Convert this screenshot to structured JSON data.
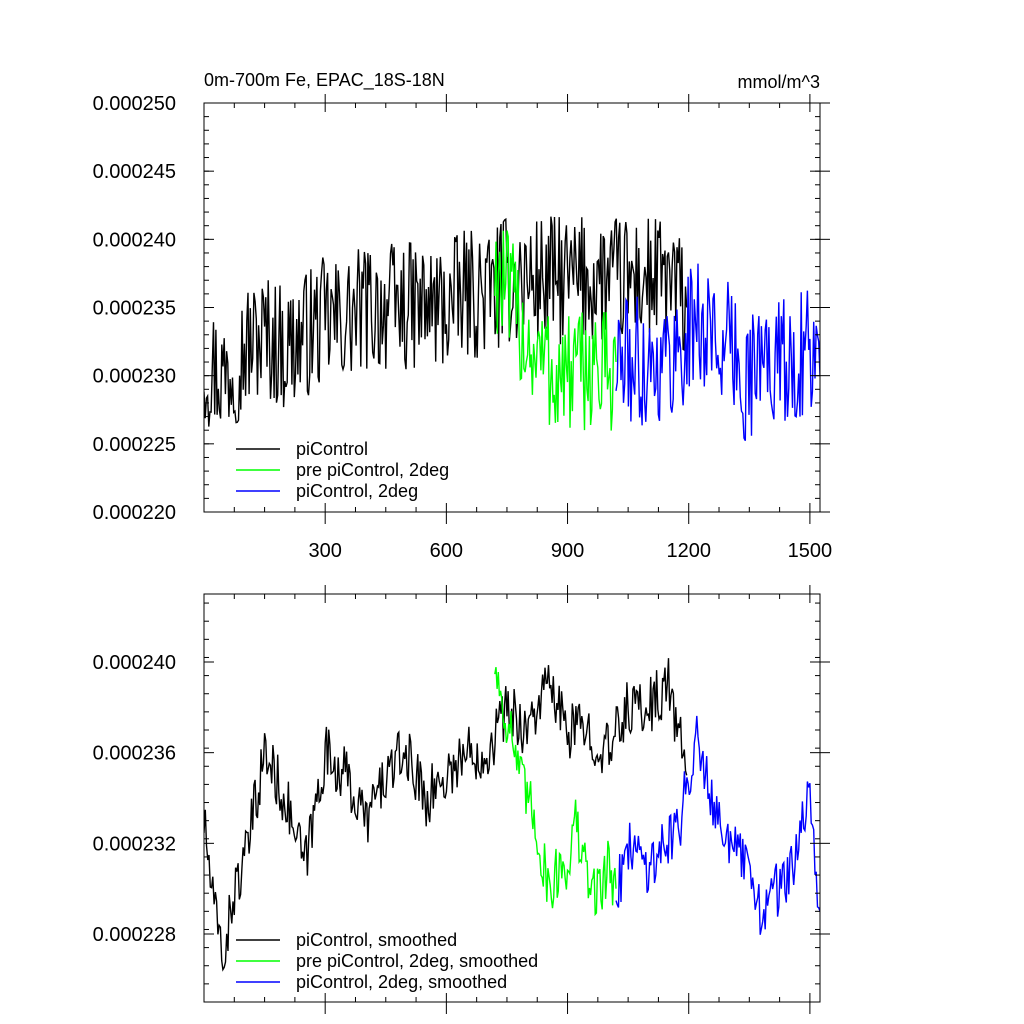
{
  "chart_data": [
    {
      "type": "line",
      "title": "0m-700m Fe, EPAC_18S-18N",
      "units_label": "mmol/m^3",
      "xlabel": "",
      "ylabel": "",
      "xlim": [
        0,
        1525
      ],
      "ylim": [
        0.00022,
        0.00025
      ],
      "x_ticks": [
        300,
        600,
        900,
        1200,
        1500
      ],
      "x_tick_labels": [
        "300",
        "600",
        "900",
        "1200",
        "1500"
      ],
      "y_ticks": [
        0.00022,
        0.000225,
        0.00023,
        0.000235,
        0.00024,
        0.000245,
        0.00025
      ],
      "y_tick_labels": [
        "0.000220",
        "0.000225",
        "0.000230",
        "0.000235",
        "0.000240",
        "0.000245",
        "0.000250"
      ],
      "legend_position": "bottom-left",
      "series": [
        {
          "name": "piControl",
          "color": "#000000",
          "x": [
            0,
            50,
            100,
            150,
            200,
            250,
            300,
            350,
            400,
            450,
            500,
            550,
            600,
            650,
            700,
            750,
            800,
            850,
            900,
            950,
            1000,
            1050,
            1100,
            1150,
            1195
          ],
          "y": [
            0.000231,
            0.00023,
            0.000232,
            0.000233,
            0.000232,
            0.000233,
            0.000234,
            0.000234,
            0.000235,
            0.000235,
            0.000235,
            0.000235,
            0.000235,
            0.000236,
            0.000236,
            0.000237,
            0.000237,
            0.000237,
            0.000237,
            0.000237,
            0.000237,
            0.000237,
            0.000237,
            0.000237,
            0.000235
          ]
        },
        {
          "name": "pre piControl, 2deg",
          "color": "#00ff00",
          "x": [
            720,
            750,
            780,
            810,
            840,
            870,
            900,
            930,
            960,
            990,
            1020
          ],
          "y": [
            0.000238,
            0.000236,
            0.000234,
            0.000232,
            0.000231,
            0.00023,
            0.00023,
            0.00023,
            0.000231,
            0.00023,
            0.000231
          ]
        },
        {
          "name": "piControl, 2deg",
          "color": "#0000ff",
          "x": [
            1020,
            1060,
            1100,
            1140,
            1180,
            1220,
            1260,
            1300,
            1340,
            1380,
            1420,
            1460,
            1500,
            1525
          ],
          "y": [
            0.000231,
            0.000231,
            0.000231,
            0.000231,
            0.000232,
            0.000234,
            0.000233,
            0.000232,
            0.00023,
            0.000231,
            0.000231,
            0.000231,
            0.000232,
            0.00023
          ]
        }
      ]
    },
    {
      "type": "line",
      "title": "",
      "xlabel": "",
      "ylabel": "",
      "xlim": [
        0,
        1525
      ],
      "ylim": [
        0.000225,
        0.000243
      ],
      "x_ticks": [
        300,
        600,
        900,
        1200,
        1500
      ],
      "y_ticks": [
        0.000228,
        0.000232,
        0.000236,
        0.00024
      ],
      "y_tick_labels": [
        "0.000228",
        "0.000232",
        "0.000236",
        "0.000240"
      ],
      "legend_position": "bottom-left",
      "series": [
        {
          "name": "piControl, smoothed",
          "color": "#000000",
          "x": [
            0,
            25,
            50,
            75,
            100,
            150,
            200,
            250,
            300,
            350,
            400,
            450,
            500,
            550,
            600,
            650,
            700,
            750,
            800,
            850,
            900,
            950,
            1000,
            1050,
            1100,
            1150,
            1195
          ],
          "y": [
            0.000233,
            0.000229,
            0.000227,
            0.00023,
            0.000231,
            0.000236,
            0.000234,
            0.000231,
            0.000236,
            0.000235,
            0.000233,
            0.000235,
            0.000236,
            0.000234,
            0.000235,
            0.000236,
            0.000236,
            0.000238,
            0.000237,
            0.000239,
            0.000237,
            0.000237,
            0.000236,
            0.000238,
            0.000238,
            0.000239,
            0.000235
          ]
        },
        {
          "name": "pre piControl, 2deg, smoothed",
          "color": "#00ff00",
          "x": [
            720,
            740,
            760,
            780,
            800,
            820,
            840,
            860,
            880,
            900,
            920,
            940,
            960,
            980,
            1000,
            1020
          ],
          "y": [
            0.00024,
            0.000238,
            0.000237,
            0.000235,
            0.000234,
            0.000233,
            0.000231,
            0.00023,
            0.000231,
            0.000231,
            0.000233,
            0.000231,
            0.00023,
            0.00023,
            0.000231,
            0.00023
          ]
        },
        {
          "name": "piControl, 2deg, smoothed",
          "color": "#0000ff",
          "x": [
            1020,
            1060,
            1100,
            1140,
            1180,
            1220,
            1260,
            1300,
            1340,
            1380,
            1420,
            1460,
            1500,
            1525
          ],
          "y": [
            0.00023,
            0.000232,
            0.000231,
            0.000232,
            0.000233,
            0.000237,
            0.000234,
            0.000232,
            0.000231,
            0.000229,
            0.00023,
            0.000231,
            0.000234,
            0.000229
          ]
        }
      ]
    }
  ]
}
